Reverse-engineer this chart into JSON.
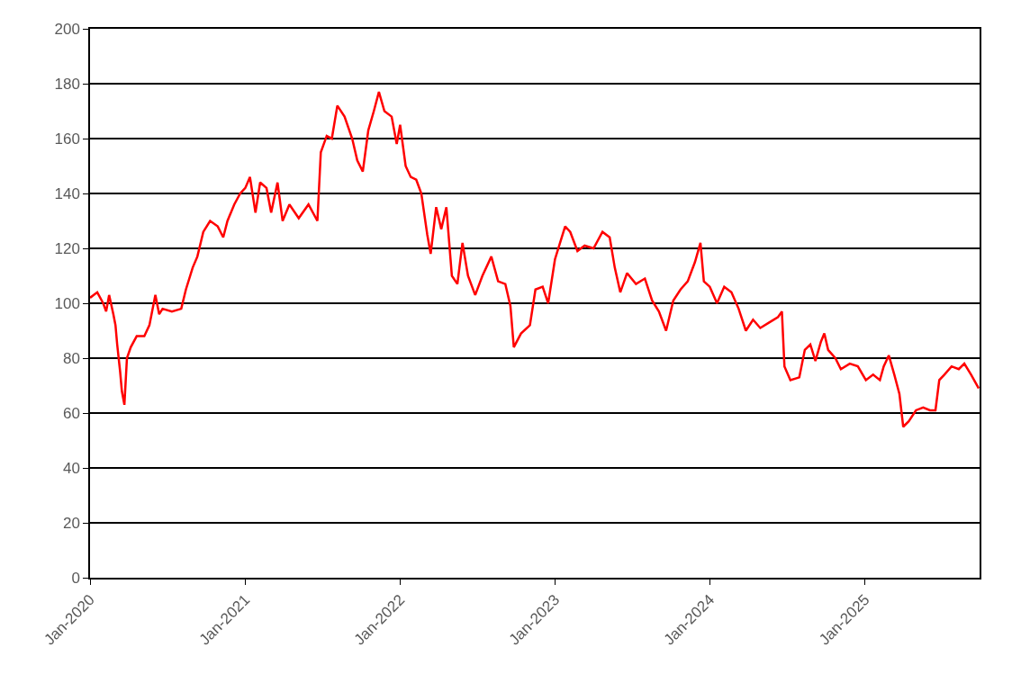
{
  "chart_data": {
    "type": "line",
    "x": [
      "2020-01-01",
      "2020-01-18",
      "2020-02-01",
      "2020-02-08",
      "2020-02-15",
      "2020-02-25",
      "2020-03-01",
      "2020-03-05",
      "2020-03-12",
      "2020-03-16",
      "2020-03-22",
      "2020-03-28",
      "2020-04-06",
      "2020-04-20",
      "2020-05-08",
      "2020-05-20",
      "2020-06-03",
      "2020-06-12",
      "2020-06-20",
      "2020-07-12",
      "2020-08-03",
      "2020-08-14",
      "2020-08-30",
      "2020-09-10",
      "2020-09-24",
      "2020-10-10",
      "2020-10-28",
      "2020-11-10",
      "2020-11-20",
      "2020-12-06",
      "2020-12-20",
      "2021-01-01",
      "2021-01-12",
      "2021-01-25",
      "2021-02-05",
      "2021-02-20",
      "2021-03-03",
      "2021-03-18",
      "2021-03-30",
      "2021-04-15",
      "2021-05-07",
      "2021-05-30",
      "2021-06-20",
      "2021-06-28",
      "2021-07-12",
      "2021-07-24",
      "2021-08-06",
      "2021-08-23",
      "2021-09-10",
      "2021-09-22",
      "2021-10-05",
      "2021-10-18",
      "2021-10-31",
      "2021-11-12",
      "2021-11-25",
      "2021-12-12",
      "2021-12-24",
      "2022-01-01",
      "2022-01-14",
      "2022-01-26",
      "2022-02-08",
      "2022-02-20",
      "2022-03-06",
      "2022-03-14",
      "2022-03-27",
      "2022-04-08",
      "2022-04-20",
      "2022-05-03",
      "2022-05-16",
      "2022-05-28",
      "2022-06-10",
      "2022-06-27",
      "2022-07-14",
      "2022-08-04",
      "2022-08-20",
      "2022-09-06",
      "2022-09-18",
      "2022-09-26",
      "2022-10-13",
      "2022-11-03",
      "2022-11-16",
      "2022-12-03",
      "2022-12-16",
      "2023-01-01",
      "2023-01-13",
      "2023-01-25",
      "2023-02-06",
      "2023-02-23",
      "2023-03-12",
      "2023-04-02",
      "2023-04-23",
      "2023-05-10",
      "2023-05-22",
      "2023-06-04",
      "2023-06-20",
      "2023-07-11",
      "2023-08-01",
      "2023-08-18",
      "2023-09-03",
      "2023-09-20",
      "2023-10-07",
      "2023-10-24",
      "2023-11-10",
      "2023-11-27",
      "2023-12-10",
      "2023-12-18",
      "2024-01-01",
      "2024-01-18",
      "2024-02-04",
      "2024-02-21",
      "2024-03-09",
      "2024-03-26",
      "2024-04-12",
      "2024-04-29",
      "2024-05-20",
      "2024-06-10",
      "2024-06-19",
      "2024-06-25",
      "2024-07-09",
      "2024-07-30",
      "2024-08-12",
      "2024-08-25",
      "2024-09-06",
      "2024-09-19",
      "2024-09-27",
      "2024-10-06",
      "2024-10-23",
      "2024-11-05",
      "2024-11-26",
      "2024-12-15",
      "2025-01-03",
      "2025-01-20",
      "2025-02-05",
      "2025-02-14",
      "2025-02-26",
      "2025-03-11",
      "2025-03-23",
      "2025-04-01",
      "2025-04-14",
      "2025-05-01",
      "2025-05-18",
      "2025-06-03",
      "2025-06-16",
      "2025-06-25",
      "2025-07-07",
      "2025-07-24",
      "2025-08-10",
      "2025-08-23",
      "2025-09-08",
      "2025-09-26"
    ],
    "series": [
      {
        "color": "#ff0000",
        "values": [
          102,
          104,
          100,
          97,
          103,
          96,
          92,
          85,
          75,
          68,
          63,
          80,
          84,
          88,
          88,
          92,
          103,
          96,
          98,
          97,
          98,
          105,
          113,
          117,
          126,
          130,
          128,
          124,
          130,
          136,
          140,
          142,
          146,
          133,
          144,
          142,
          133,
          144,
          130,
          136,
          131,
          136,
          130,
          155,
          161,
          160,
          172,
          168,
          160,
          152,
          148,
          163,
          170,
          177,
          170,
          168,
          158,
          165,
          150,
          146,
          145,
          140,
          125,
          118,
          135,
          127,
          135,
          110,
          107,
          122,
          110,
          103,
          110,
          117,
          108,
          107,
          99,
          84,
          89,
          92,
          105,
          106,
          100,
          116,
          122,
          128,
          126,
          119,
          121,
          120,
          126,
          124,
          113,
          104,
          111,
          107,
          109,
          101,
          97,
          90,
          101,
          105,
          108,
          115,
          122,
          108,
          106,
          100,
          106,
          104,
          98,
          90,
          94,
          91,
          93,
          95,
          97,
          77,
          72,
          73,
          83,
          85,
          79,
          86,
          89,
          83,
          80,
          76,
          78,
          77,
          72,
          74,
          72,
          77,
          81,
          74,
          67,
          55,
          57,
          61,
          62,
          61,
          61,
          72,
          74,
          77,
          76,
          78,
          74,
          69
        ]
      }
    ],
    "xlim": [
      "2020-01-01",
      "2025-09-28"
    ],
    "xticks": [
      {
        "value": "2020-01-01",
        "label": "Jan-2020"
      },
      {
        "value": "2021-01-01",
        "label": "Jan-2021"
      },
      {
        "value": "2022-01-01",
        "label": "Jan-2022"
      },
      {
        "value": "2023-01-01",
        "label": "Jan-2023"
      },
      {
        "value": "2024-01-01",
        "label": "Jan-2024"
      },
      {
        "value": "2025-01-01",
        "label": "Jan-2025"
      }
    ],
    "ylim": [
      0,
      200
    ],
    "yticks": [
      0,
      20,
      40,
      60,
      80,
      100,
      120,
      140,
      160,
      180,
      200
    ],
    "grid": "y",
    "marker": "none",
    "line_style": "solid"
  }
}
